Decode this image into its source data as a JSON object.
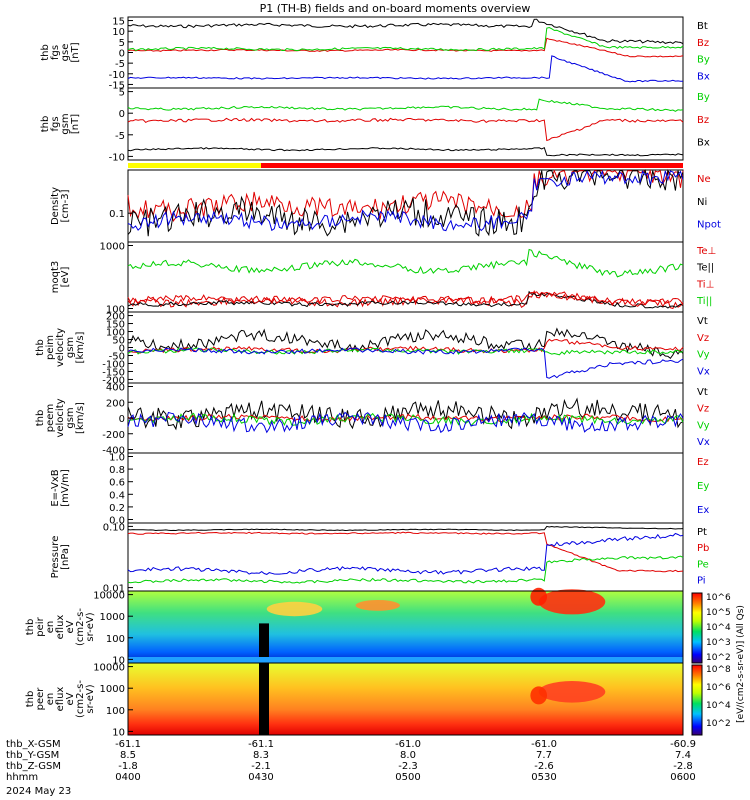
{
  "title": "P1 (TH-B) fields and on-board moments overview",
  "date_label": "2024 May 23",
  "colors": {
    "black": "#000000",
    "red": "#e00000",
    "green": "#00d000",
    "blue": "#0000e0",
    "yellow": "#ffff00",
    "brightred": "#ff0000"
  },
  "time_axis": {
    "range": [
      "04:00",
      "06:00"
    ],
    "rows": [
      {
        "name": "thb_X-GSM",
        "values": [
          "-61.1",
          "-61.1",
          "-61.0",
          "-61.0",
          "-60.9"
        ]
      },
      {
        "name": "thb_Y-GSM",
        "values": [
          "8.5",
          "8.3",
          "8.0",
          "7.7",
          "7.4"
        ]
      },
      {
        "name": "thb_Z-GSM",
        "values": [
          "-1.8",
          "-2.1",
          "-2.3",
          "-2.6",
          "-2.8"
        ]
      },
      {
        "name": "hhmm",
        "values": [
          "0400",
          "0430",
          "0500",
          "0530",
          "0600"
        ]
      }
    ]
  },
  "chart_data": [
    {
      "type": "line",
      "panel": "fgs_gse",
      "ylabel": [
        "thb",
        "fgs",
        "gse",
        "[nT]"
      ],
      "yticks": [
        "15",
        "10",
        "5",
        "0",
        "-5",
        "-10",
        "-15"
      ],
      "ylim": [
        -17,
        17
      ],
      "series": [
        {
          "name": "Bt"
        },
        {
          "name": "Bz"
        },
        {
          "name": "By"
        },
        {
          "name": "Bx"
        }
      ]
    },
    {
      "type": "line",
      "panel": "fgs_gsm",
      "ylabel": [
        "thb",
        "fgs",
        "gsm",
        "[nT]"
      ],
      "yticks": [
        "5",
        "0",
        "-5",
        "-10"
      ],
      "ylim": [
        -12,
        7
      ],
      "series": [
        {
          "name": "By"
        },
        {
          "name": "Bz"
        },
        {
          "name": "Bx"
        }
      ]
    },
    {
      "type": "line",
      "panel": "density",
      "ylabel": [
        "Density",
        "[cm-3]"
      ],
      "yticks": [
        "0.1"
      ],
      "scale": "log",
      "ylim": [
        0.02,
        1.0
      ],
      "series": [
        {
          "name": "Ne"
        },
        {
          "name": "Ni"
        },
        {
          "name": "Npot"
        }
      ]
    },
    {
      "type": "line",
      "panel": "temperature",
      "ylabel": [
        "moqt3",
        "[eV]"
      ],
      "yticks": [
        "1000",
        "100"
      ],
      "scale": "log",
      "ylim": [
        80,
        5000
      ],
      "series": [
        {
          "name": "Te⊥"
        },
        {
          "name": "Te||"
        },
        {
          "name": "Ti⊥"
        },
        {
          "name": "Ti||"
        }
      ]
    },
    {
      "type": "line",
      "panel": "peim_velocity",
      "ylabel": [
        "thb",
        "peim",
        "velocity",
        "gsm",
        "[km/s]"
      ],
      "yticks": [
        "200",
        "150",
        "100",
        "50",
        "0",
        "-50",
        "-100",
        "-150",
        "-200"
      ],
      "ylim": [
        -230,
        280
      ],
      "series": [
        {
          "name": "Vt"
        },
        {
          "name": "Vz"
        },
        {
          "name": "Vy"
        },
        {
          "name": "Vx"
        }
      ]
    },
    {
      "type": "line",
      "panel": "peem_velocity",
      "ylabel": [
        "thb",
        "peem",
        "velocity",
        "gsm",
        "[km/s]"
      ],
      "yticks": [
        "400",
        "200",
        "0",
        "-200",
        "-400"
      ],
      "ylim": [
        -450,
        450
      ],
      "series": [
        {
          "name": "Vt"
        },
        {
          "name": "Vz"
        },
        {
          "name": "Vy"
        },
        {
          "name": "Vx"
        }
      ]
    },
    {
      "type": "line",
      "panel": "efield",
      "ylabel": [
        "E=-VxB",
        "[mV/m]"
      ],
      "yticks": [
        "1.0",
        "0.8",
        "0.6",
        "0.4",
        "0.2",
        "0.0"
      ],
      "ylim": [
        0,
        1.0
      ],
      "series": [
        {
          "name": "Ez"
        },
        {
          "name": "Ey"
        },
        {
          "name": "Ex"
        }
      ]
    },
    {
      "type": "line",
      "panel": "pressure",
      "ylabel": [
        "Pressure",
        "[nPa]"
      ],
      "yticks": [
        "0.10",
        "0.01"
      ],
      "scale": "log",
      "ylim": [
        0.002,
        0.15
      ],
      "series": [
        {
          "name": "Pt"
        },
        {
          "name": "Pb"
        },
        {
          "name": "Pe"
        },
        {
          "name": "Pi"
        }
      ]
    },
    {
      "type": "heatmap",
      "panel": "peir_spectrogram",
      "ylabel": [
        "thb",
        "peir",
        "en",
        "eflux",
        "eV",
        "(cm2-s-",
        "sr-eV)"
      ],
      "yticks": [
        "10000",
        "1000",
        "100",
        "10"
      ],
      "scale": "log",
      "ylim": [
        5,
        30000
      ]
    },
    {
      "type": "heatmap",
      "panel": "peer_spectrogram",
      "ylabel": [
        "thb",
        "peer",
        "en",
        "eflux",
        "eV",
        "(cm2-s-",
        "sr-eV)"
      ],
      "yticks": [
        "10000",
        "1000",
        "100",
        "10"
      ],
      "scale": "log",
      "ylim": [
        5,
        30000
      ]
    },
    {
      "type": "colorbar",
      "label": "[eV/(cm2-s-sr-eV)] (All Qs)",
      "tick_labels_peir": [
        "10^6",
        "10^5",
        "10^4",
        "10^3",
        "10^2"
      ],
      "tick_labels_peer": [
        "10^8",
        "10^6",
        "10^4",
        "10^2"
      ]
    }
  ]
}
